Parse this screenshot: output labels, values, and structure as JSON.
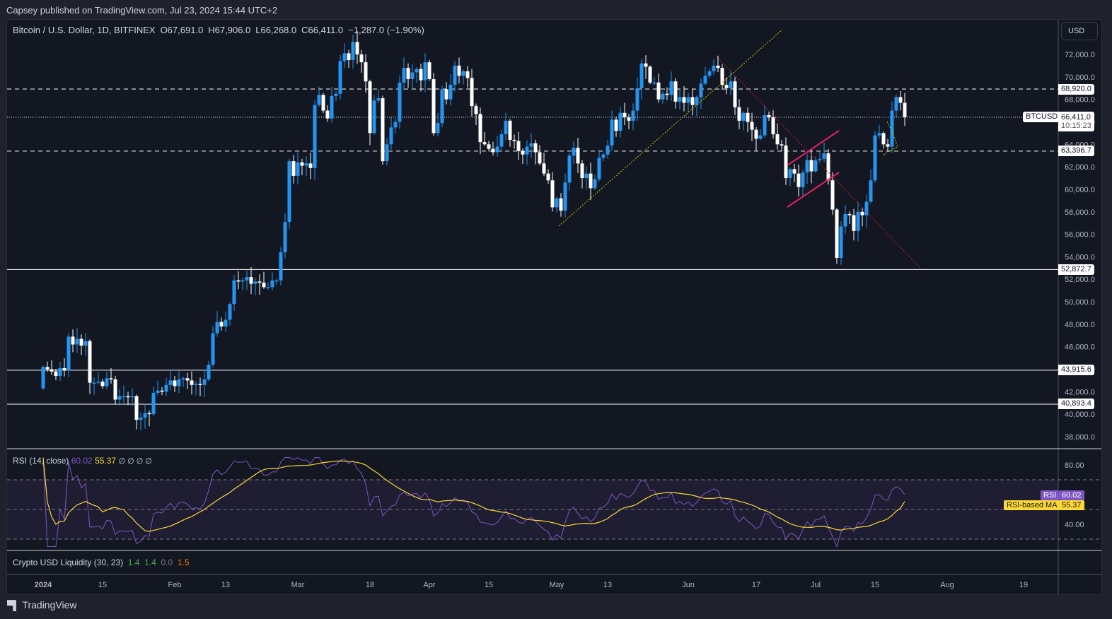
{
  "header": {
    "published": "Capsey published on TradingView.com, Jul 23, 2024 15:44 UTC+2"
  },
  "legend": {
    "symbol": "Bitcoin / U.S. Dollar, 1D, BITFINEX",
    "open": "O67,691.0",
    "high": "H67,906.0",
    "low": "L66,268.0",
    "close": "C66,411.0",
    "change": "−1,287.0 (−1.90%)"
  },
  "currency_button": "USD",
  "price_axis": {
    "ticks": [
      "72,000.0",
      "70,000.0",
      "68,000.0",
      "66,000.0",
      "64,000.0",
      "62,000.0",
      "60,000.0",
      "58,000.0",
      "56,000.0",
      "54,000.0",
      "52,000.0",
      "50,000.0",
      "48,000.0",
      "46,000.0",
      "44,000.0",
      "42,000.0",
      "40,000.0",
      "38,000.0"
    ],
    "tick_values": [
      72000,
      70000,
      68000,
      66000,
      64000,
      62000,
      60000,
      58000,
      56000,
      54000,
      52000,
      50000,
      48000,
      46000,
      44000,
      42000,
      40000,
      38000
    ],
    "current_symbol_tag": "BTCUSD",
    "current_price": "66,411.0",
    "countdown": "10:15:23"
  },
  "levels": [
    {
      "value": 68920.0,
      "label": "68,920.0",
      "style": "dashed"
    },
    {
      "value": 63396.7,
      "label": "63,396.7",
      "style": "dashed"
    },
    {
      "value": 52872.7,
      "label": "52,872.7",
      "style": "solid"
    },
    {
      "value": 43915.6,
      "label": "43,915.6",
      "style": "solid"
    },
    {
      "value": 40893.4,
      "label": "40,893.4",
      "style": "solid"
    }
  ],
  "time_axis": {
    "labels": [
      {
        "text": "2024",
        "day": 0
      },
      {
        "text": "15",
        "day": 14
      },
      {
        "text": "Feb",
        "day": 31
      },
      {
        "text": "13",
        "day": 43
      },
      {
        "text": "Mar",
        "day": 60
      },
      {
        "text": "18",
        "day": 77
      },
      {
        "text": "Apr",
        "day": 91
      },
      {
        "text": "15",
        "day": 105
      },
      {
        "text": "May",
        "day": 121
      },
      {
        "text": "13",
        "day": 133
      },
      {
        "text": "Jun",
        "day": 152
      },
      {
        "text": "17",
        "day": 168
      },
      {
        "text": "Jul",
        "day": 182
      },
      {
        "text": "15",
        "day": 196
      },
      {
        "text": "Aug",
        "day": 213
      },
      {
        "text": "19",
        "day": 231
      }
    ]
  },
  "rsi": {
    "title": "RSI (14, close)",
    "value": "60.02",
    "ma_value": "55.37",
    "placeholders": "∅ ∅ ∅ ∅",
    "axis": [
      "80.00",
      "40.00"
    ],
    "tag_rsi": "RSI",
    "tag_ma": "RSI-based MA"
  },
  "liquidity": {
    "title": "Crypto USD Liquidity (30, 23)",
    "v1": "1.4",
    "v2": "1.4",
    "v3": "0.0",
    "v4": "1.5"
  },
  "footer": {
    "brand": "TradingView"
  },
  "colors": {
    "up": "#2196f3",
    "down": "#ffffff",
    "rsi": "#7e57c2",
    "rsi_ma": "#fdd835",
    "liq_green": "#4caf50",
    "liq_gray": "#787b86",
    "liq_orange": "#f57c00",
    "channel": "#e91e63",
    "trend_up": "#c8c800",
    "trend_down": "#b71c3c"
  },
  "chart_data": {
    "type": "candlestick",
    "title": "Bitcoin / U.S. Dollar, 1D, BITFINEX",
    "xlabel": "",
    "ylabel": "USD",
    "ylim": [
      37000,
      74500
    ],
    "x_range": [
      "2024-01-01",
      "2024-07-23"
    ],
    "key_levels": [
      68920.0,
      63396.7,
      52872.7,
      43915.6,
      40893.4
    ],
    "last_candle": {
      "date": "2024-07-23",
      "open": 67691.0,
      "high": 67906.0,
      "low": 66268.0,
      "close": 66411.0
    },
    "close_series_approx": [
      44200,
      44000,
      43800,
      43400,
      44100,
      43900,
      46900,
      46200,
      46700,
      46100,
      46500,
      42800,
      42800,
      42900,
      42500,
      43200,
      43100,
      41300,
      41600,
      41600,
      41500,
      41600,
      39500,
      39700,
      40100,
      40000,
      41900,
      42100,
      42000,
      42600,
      43000,
      42500,
      43100,
      43200,
      43000,
      42600,
      42700,
      42600,
      43100,
      44400,
      47200,
      48200,
      47800,
      48400,
      49800,
      51900,
      51800,
      51900,
      52200,
      51600,
      51800,
      51700,
      51300,
      51300,
      51900,
      51900,
      54400,
      57100,
      62500,
      61200,
      62400,
      62100,
      62300,
      61900,
      67500,
      68400,
      67000,
      66300,
      68300,
      68500,
      71400,
      72100,
      71500,
      73100,
      72000,
      71300,
      69600,
      65000,
      67900,
      68100,
      62500,
      64000,
      65500,
      66000,
      69500,
      70800,
      69800,
      70400,
      70700,
      69700,
      71300,
      69800,
      65000,
      65900,
      68900,
      68000,
      69300,
      71000,
      70100,
      70500,
      69900,
      67400,
      66700,
      64200,
      64000,
      63600,
      63300,
      63800,
      64900,
      66100,
      64400,
      64300,
      63400,
      63100,
      63800,
      64100,
      63300,
      62300,
      61400,
      60800,
      58400,
      59200,
      58100,
      60600,
      63000,
      63700,
      62300,
      61000,
      61400,
      60100,
      60900,
      62800,
      63100,
      63900,
      66200,
      65200,
      66800,
      66400,
      66100,
      67000,
      69000,
      71200,
      70900,
      69500,
      69500,
      68000,
      68500,
      68400,
      69600,
      67800,
      68200,
      67700,
      68200,
      67500,
      68200,
      69400,
      70100,
      70500,
      71000,
      70800,
      69300,
      69000,
      69600,
      67300,
      66100,
      66800,
      66000,
      65300,
      64500,
      64800,
      66600,
      66400,
      64900,
      64000,
      63900,
      61000,
      61800,
      61400,
      60200,
      61500,
      62600,
      61600,
      62600,
      62700,
      63200,
      60800,
      58200,
      53900,
      56700,
      57800,
      57700,
      56300,
      58000,
      57700,
      58900,
      60800,
      64800,
      65000,
      64000,
      63800,
      67000,
      68200,
      67700,
      66400
    ]
  }
}
